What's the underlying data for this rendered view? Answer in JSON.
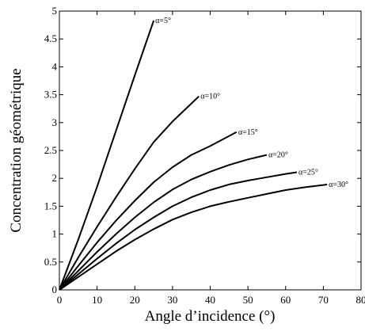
{
  "chart_data": {
    "type": "line",
    "title": "",
    "xlabel": "Angle d’incidence (°)",
    "ylabel": "Concentration géométrique",
    "xlim": [
      0,
      80
    ],
    "ylim": [
      0,
      5
    ],
    "xticks": [
      0,
      10,
      20,
      30,
      40,
      50,
      60,
      70,
      80
    ],
    "xtick_labels": [
      "0",
      "10",
      "20",
      "30",
      "40",
      "50",
      "60",
      "70",
      "80"
    ],
    "yticks": [
      0,
      0.5,
      1,
      1.5,
      2,
      2.5,
      3,
      3.5,
      4,
      4.5,
      5
    ],
    "ytick_labels": [
      "0",
      "0.5",
      "1",
      "1.5",
      "2",
      "2.5",
      "3",
      "3.5",
      "4",
      "4.5",
      "5"
    ],
    "grid": false,
    "legend": "none",
    "series": [
      {
        "name": "α=5°",
        "x": [
          0,
          5,
          10,
          15,
          20,
          25
        ],
        "y": [
          0,
          0.9,
          1.85,
          2.85,
          3.85,
          4.83
        ]
      },
      {
        "name": "α=10°",
        "x": [
          0,
          5,
          10,
          15,
          20,
          25,
          30,
          37
        ],
        "y": [
          0,
          0.58,
          1.13,
          1.66,
          2.17,
          2.65,
          3.02,
          3.47
        ]
      },
      {
        "name": "α=15°",
        "x": [
          0,
          5,
          10,
          15,
          20,
          25,
          30,
          35,
          40,
          47
        ],
        "y": [
          0,
          0.43,
          0.85,
          1.24,
          1.6,
          1.93,
          2.2,
          2.42,
          2.58,
          2.83
        ]
      },
      {
        "name": "α=20°",
        "x": [
          0,
          5,
          10,
          15,
          20,
          25,
          30,
          35,
          40,
          45,
          50,
          55
        ],
        "y": [
          0,
          0.34,
          0.68,
          1.0,
          1.3,
          1.57,
          1.8,
          1.98,
          2.12,
          2.24,
          2.34,
          2.42
        ]
      },
      {
        "name": "α=25°",
        "x": [
          0,
          5,
          10,
          15,
          20,
          25,
          30,
          35,
          40,
          45,
          50,
          55,
          60,
          63
        ],
        "y": [
          0,
          0.28,
          0.56,
          0.83,
          1.08,
          1.3,
          1.5,
          1.66,
          1.79,
          1.89,
          1.96,
          2.02,
          2.08,
          2.11
        ]
      },
      {
        "name": "α=30°",
        "x": [
          0,
          5,
          10,
          15,
          20,
          25,
          30,
          35,
          40,
          45,
          50,
          55,
          60,
          65,
          70,
          71
        ],
        "y": [
          0,
          0.23,
          0.46,
          0.69,
          0.9,
          1.09,
          1.26,
          1.39,
          1.5,
          1.58,
          1.65,
          1.72,
          1.79,
          1.84,
          1.88,
          1.89
        ]
      }
    ]
  }
}
